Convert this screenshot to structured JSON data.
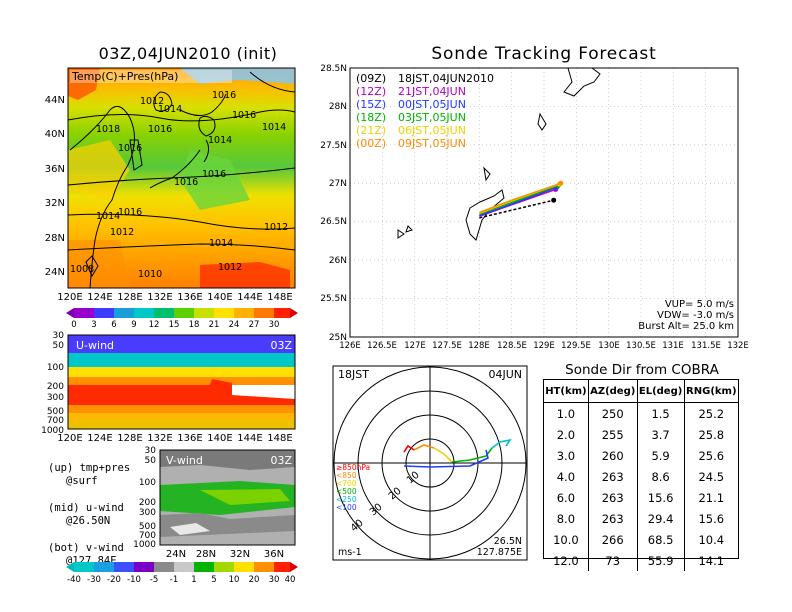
{
  "panels": {
    "init_map": {
      "title": "03Z,04JUN2010 (init)",
      "overlay_label": "Temp(C)+Pres(hPa)",
      "lat_labels": [
        "44N",
        "40N",
        "36N",
        "32N",
        "28N",
        "24N"
      ],
      "lon_labels": [
        "120E",
        "124E",
        "128E",
        "132E",
        "136E",
        "140E",
        "144E",
        "148E"
      ],
      "isobar_labels": [
        "1016",
        "1012",
        "1014",
        "1016",
        "1018",
        "1016",
        "1014",
        "1014",
        "1016",
        "1016",
        "1016",
        "1014",
        "1016",
        "1012",
        "1014",
        "1012",
        "1008",
        "1010",
        "1012"
      ],
      "colorbar_labels": [
        "0",
        "3",
        "6",
        "9",
        "12",
        "15",
        "18",
        "21",
        "24",
        "27",
        "30"
      ]
    },
    "uwind": {
      "label": "U-wind",
      "time": "03Z",
      "y_labels": [
        "30",
        "50",
        "100",
        "200",
        "300",
        "500",
        "700",
        "1000"
      ],
      "x_labels": [
        "120E",
        "124E",
        "128E",
        "132E",
        "136E",
        "140E",
        "144E",
        "148E"
      ]
    },
    "vwind": {
      "label": "V-wind",
      "time": "03Z",
      "y_labels": [
        "30",
        "50",
        "100",
        "200",
        "300",
        "500",
        "700",
        "1000"
      ],
      "x_labels": [
        "24N",
        "28N",
        "32N",
        "36N"
      ],
      "colorbar_labels": [
        "-40",
        "-30",
        "-20",
        "-10",
        "-5",
        "-1",
        "1",
        "5",
        "10",
        "20",
        "30",
        "40"
      ]
    },
    "legend_notes": {
      "up": "(up) tmp+pres",
      "up2": "@surf",
      "mid": "(mid) u-wind",
      "mid2": "@26.50N",
      "bot": "(bot) v-wind",
      "bot2": "@127.84E"
    }
  },
  "tracking": {
    "title": "Sonde Tracking Forecast",
    "launches": [
      {
        "code": "(09Z)",
        "label": "18JST,04JUN2010",
        "color": "#000000"
      },
      {
        "code": "(12Z)",
        "label": "21JST,04JUN",
        "color": "#b000c8"
      },
      {
        "code": "(15Z)",
        "label": "00JST,05JUN",
        "color": "#1f3cff"
      },
      {
        "code": "(18Z)",
        "label": "03JST,05JUN",
        "color": "#00b400"
      },
      {
        "code": "(21Z)",
        "label": "06JST,05JUN",
        "color": "#f0d000"
      },
      {
        "code": "(00Z)",
        "label": "09JST,05JUN",
        "color": "#ff8c00"
      }
    ],
    "lat_labels": [
      "28.5N",
      "28N",
      "27.5N",
      "27N",
      "26.5N",
      "26N",
      "25.5N",
      "25N"
    ],
    "lon_labels": [
      "126E",
      "126.5E",
      "127E",
      "127.5E",
      "128E",
      "128.5E",
      "129E",
      "129.5E",
      "130E",
      "130.5E",
      "131E",
      "131.5E",
      "132E"
    ],
    "params": {
      "vup": "VUP=  5.0  m/s",
      "vdw": "VDW= -3.0  m/s",
      "burst": "Burst Alt=  25.0  km"
    }
  },
  "polar": {
    "time": "18JST",
    "date": "04JUN",
    "unit": "ms-1",
    "ring_labels": [
      "10",
      "20",
      "30",
      "40"
    ],
    "pressure_legend": [
      "≥850hPa",
      "<850",
      "<700",
      "<500",
      "<250",
      "<100"
    ],
    "pressure_colors": [
      "#ff0000",
      "#ff8c00",
      "#f0d000",
      "#00b400",
      "#00bcd4",
      "#1f3cff"
    ],
    "location_lat": "26.5N",
    "location_lon": "127.875E"
  },
  "sonde_table": {
    "title": "Sonde Dir from COBRA",
    "headers": [
      "HT(km)",
      "AZ(deg)",
      "EL(deg)",
      "RNG(km)"
    ],
    "rows": [
      [
        "1.0",
        "250",
        "1.5",
        "25.2"
      ],
      [
        "2.0",
        "255",
        "3.7",
        "25.8"
      ],
      [
        "3.0",
        "260",
        "5.9",
        "25.6"
      ],
      [
        "4.0",
        "263",
        "8.6",
        "24.5"
      ],
      [
        "6.0",
        "263",
        "15.6",
        "21.1"
      ],
      [
        "8.0",
        "263",
        "29.4",
        "15.6"
      ],
      [
        "10.0",
        "266",
        "68.5",
        "10.4"
      ],
      [
        "12.0",
        "73",
        "55.9",
        "14.1"
      ]
    ]
  },
  "chart_data": [
    {
      "type": "heatmap",
      "title": "03Z,04JUN2010 (init)",
      "variable": "Temp(C)+Pres(hPa)",
      "xlim": [
        "120E",
        "150E"
      ],
      "ylim": [
        "22N",
        "48N"
      ],
      "colorbar": [
        0,
        3,
        6,
        9,
        12,
        15,
        18,
        21,
        24,
        27,
        30
      ]
    },
    {
      "type": "line",
      "title": "Sonde Tracking Forecast",
      "xlim": [
        126,
        132
      ],
      "ylim": [
        25,
        28.5
      ],
      "series": [
        {
          "name": "(09Z)",
          "x": [
            128.0,
            128.5,
            129.15
          ],
          "y": [
            26.55,
            26.65,
            26.78
          ]
        },
        {
          "name": "(12Z)",
          "x": [
            128.0,
            128.5,
            129.18
          ],
          "y": [
            26.57,
            26.72,
            26.92
          ]
        },
        {
          "name": "(15Z)",
          "x": [
            128.0,
            128.5,
            129.2
          ],
          "y": [
            26.58,
            26.73,
            26.95
          ]
        },
        {
          "name": "(18Z)",
          "x": [
            128.0,
            128.5,
            129.22
          ],
          "y": [
            26.6,
            26.75,
            26.97
          ]
        },
        {
          "name": "(21Z)",
          "x": [
            128.0,
            128.5,
            129.24
          ],
          "y": [
            26.61,
            26.77,
            26.99
          ]
        },
        {
          "name": "(00Z)",
          "x": [
            128.0,
            128.5,
            129.26
          ],
          "y": [
            26.62,
            26.78,
            27.0
          ]
        }
      ]
    },
    {
      "type": "table",
      "title": "Sonde Dir from COBRA",
      "columns": [
        "HT(km)",
        "AZ(deg)",
        "EL(deg)",
        "RNG(km)"
      ],
      "ht": [
        1.0,
        2.0,
        3.0,
        4.0,
        6.0,
        8.0,
        10.0,
        12.0
      ],
      "az": [
        250,
        255,
        260,
        263,
        263,
        263,
        266,
        73
      ],
      "el": [
        1.5,
        3.7,
        5.9,
        8.6,
        15.6,
        29.4,
        68.5,
        55.9
      ],
      "rng": [
        25.2,
        25.8,
        25.6,
        24.5,
        21.1,
        15.6,
        10.4,
        14.1
      ]
    }
  ]
}
